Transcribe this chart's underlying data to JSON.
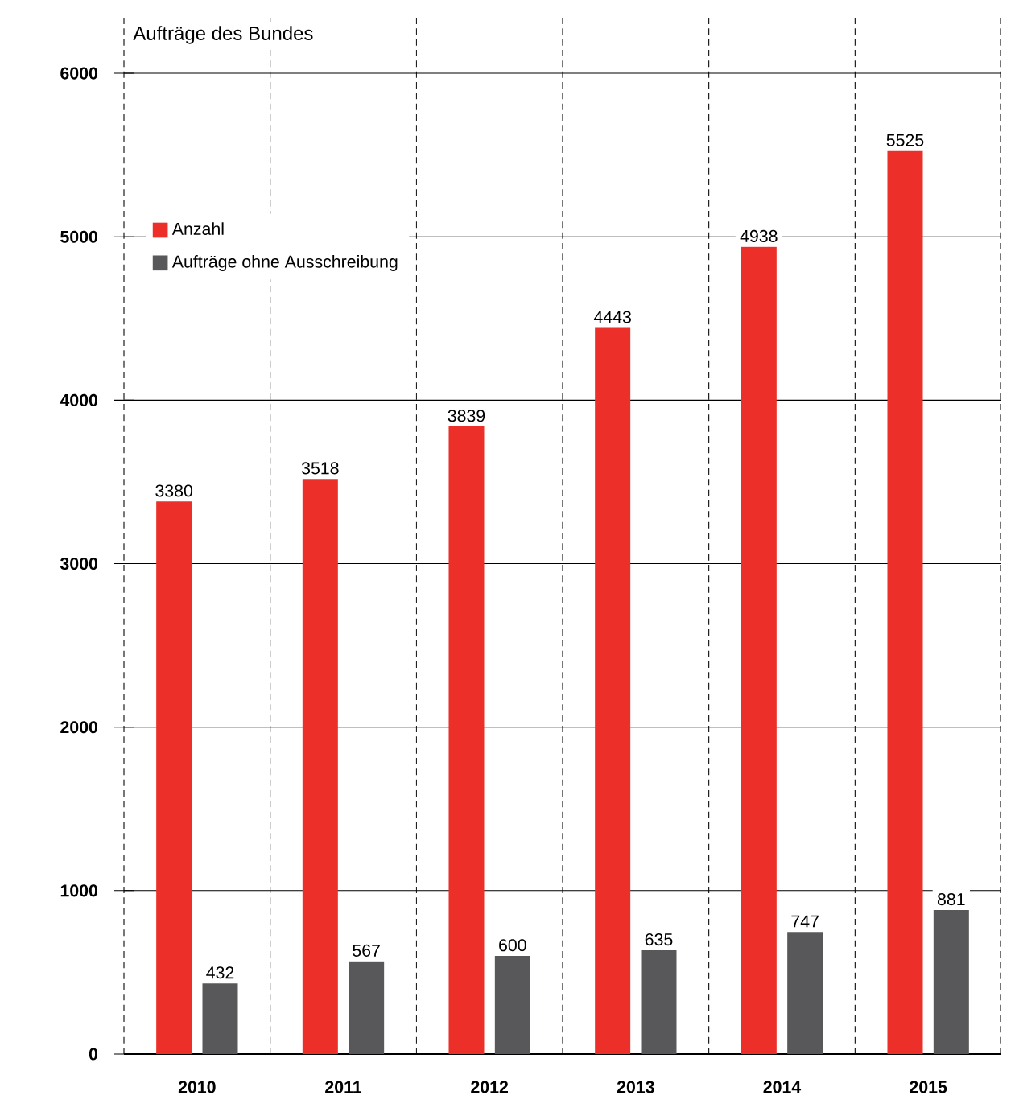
{
  "chart_data": {
    "type": "bar",
    "title": "Aufträge des Bundes",
    "categories": [
      "2010",
      "2011",
      "2012",
      "2013",
      "2014",
      "2015"
    ],
    "series": [
      {
        "name": "Anzahl",
        "color": "#ec2f28",
        "values": [
          3380,
          3518,
          3839,
          4443,
          4938,
          5525
        ]
      },
      {
        "name": "Aufträge ohne Ausschreibung",
        "color": "#58585a",
        "values": [
          432,
          567,
          600,
          635,
          747,
          881
        ]
      }
    ],
    "ylim": [
      0,
      6350
    ],
    "yticks": [
      0,
      1000,
      2000,
      3000,
      4000,
      5000,
      6000
    ],
    "grid": "y",
    "legend": "top left",
    "data_labels": true
  }
}
